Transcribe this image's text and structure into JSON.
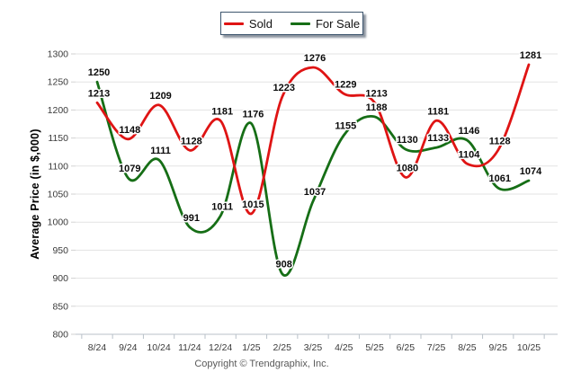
{
  "legend": {
    "items": [
      {
        "label": "Sold",
        "color": "#df1414"
      },
      {
        "label": "For Sale",
        "color": "#166e16"
      }
    ]
  },
  "chart_data": {
    "type": "line",
    "x": [
      "8/24",
      "9/24",
      "10/24",
      "11/24",
      "12/24",
      "1/25",
      "2/25",
      "3/25",
      "4/25",
      "5/25",
      "6/25",
      "7/25",
      "8/25",
      "9/25",
      "10/25"
    ],
    "series": [
      {
        "name": "Sold",
        "color": "#df1414",
        "values": [
          1213,
          1148,
          1209,
          1128,
          1181,
          1015,
          1223,
          1276,
          1229,
          1213,
          1080,
          1181,
          1104,
          1128,
          1281
        ]
      },
      {
        "name": "For Sale",
        "color": "#166e16",
        "values": [
          1250,
          1079,
          1111,
          991,
          1011,
          1176,
          908,
          1037,
          1155,
          1188,
          1130,
          1133,
          1146,
          1061,
          1074
        ]
      }
    ],
    "title": "",
    "xlabel": "",
    "ylabel": "Average Price (in $,000)",
    "ylim": [
      800,
      1300
    ],
    "ytick_step": 50,
    "yticks": [
      800,
      850,
      900,
      950,
      1000,
      1050,
      1100,
      1150,
      1200,
      1250,
      1300
    ],
    "grid": "horizontal",
    "legend_position": "top-center",
    "smooth": true,
    "data_labels": true,
    "grid_color": "#e3e3e3",
    "axis_color": "#b9c1c9"
  },
  "footer": {
    "copyright": "Copyright © Trendgraphix, Inc."
  }
}
